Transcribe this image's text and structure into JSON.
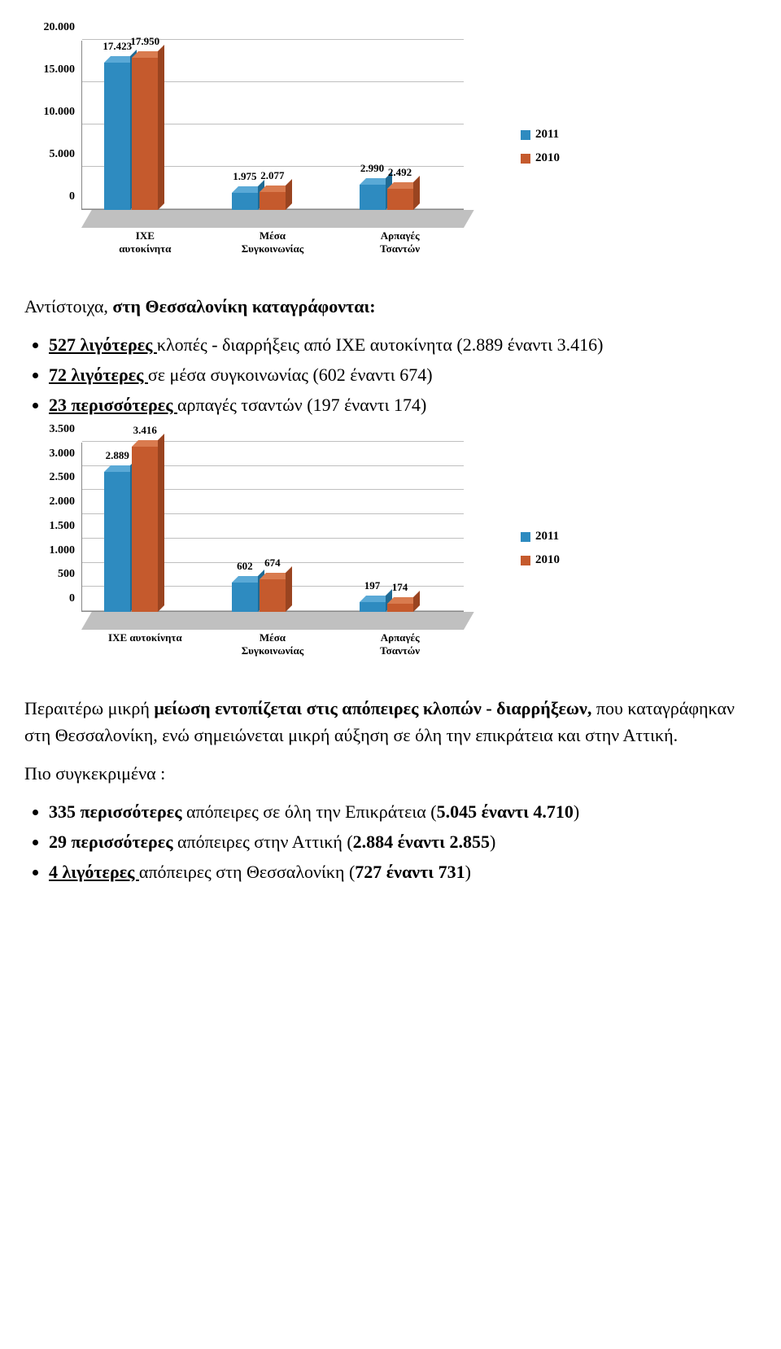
{
  "chart1": {
    "type": "bar-3d",
    "categories": [
      "ΙΧΕ\nαυτοκίνητα",
      "Μέσα\nΣυγκοινωνίας",
      "Αρπαγές\nΤσαντών"
    ],
    "series": [
      {
        "name": "2011",
        "color": "#2e8bc0",
        "color_top": "#5aa9d6",
        "color_side": "#1f6a94",
        "values": [
          17423,
          1975,
          2990
        ]
      },
      {
        "name": "2010",
        "color": "#c55a2d",
        "color_top": "#d97b4f",
        "color_side": "#9a4420",
        "values": [
          17950,
          2077,
          2492
        ]
      }
    ],
    "value_labels": [
      [
        "17.423",
        "17.950"
      ],
      [
        "1.975",
        "2.077"
      ],
      [
        "2.990",
        "2.492"
      ]
    ],
    "y_ticks": [
      0,
      5000,
      10000,
      15000,
      20000
    ],
    "y_tick_labels": [
      "0",
      "5.000",
      "10.000",
      "15.000",
      "20.000"
    ],
    "y_max": 20000,
    "grid_color": "#bfbfbf",
    "floor_color": "#c0c0c0"
  },
  "chart2": {
    "type": "bar-3d",
    "categories": [
      "ΙΧΕ αυτοκίνητα",
      "Μέσα\nΣυγκοινωνίας",
      "Αρπαγές\nΤσαντών"
    ],
    "series": [
      {
        "name": "2011",
        "color": "#2e8bc0",
        "color_top": "#5aa9d6",
        "color_side": "#1f6a94",
        "values": [
          2889,
          602,
          197
        ]
      },
      {
        "name": "2010",
        "color": "#c55a2d",
        "color_top": "#d97b4f",
        "color_side": "#9a4420",
        "values": [
          3416,
          674,
          174
        ]
      }
    ],
    "value_labels": [
      [
        "2.889",
        "3.416"
      ],
      [
        "602",
        "674"
      ],
      [
        "197",
        "174"
      ]
    ],
    "y_ticks": [
      0,
      500,
      1000,
      1500,
      2000,
      2500,
      3000,
      3500
    ],
    "y_tick_labels": [
      "0",
      "500",
      "1.000",
      "1.500",
      "2.000",
      "2.500",
      "3.000",
      "3.500"
    ],
    "y_max": 3500,
    "grid_color": "#bfbfbf",
    "floor_color": "#c0c0c0"
  },
  "text": {
    "para1_prefix": "Αντίστοιχα, ",
    "para1_bold": "στη Θεσσαλονίκη καταγράφονται:",
    "bullets1": {
      "b1_bold": "527 λιγότερες ",
      "b1_rest": "κλοπές - διαρρήξεις από ΙΧΕ αυτοκίνητα (2.889 έναντι 3.416)",
      "b2_bold": "72 λιγότερες ",
      "b2_rest": "σε μέσα συγκοινωνίας (602 έναντι 674)",
      "b3_bold": "23 περισσότερες ",
      "b3_rest": "αρπαγές τσαντών (197 έναντι 174)"
    },
    "para2_part1": "Περαιτέρω μικρή ",
    "para2_bold1": "μείωση εντοπίζεται στις απόπειρες κλοπών - διαρρήξεων, ",
    "para2_part2": "που καταγράφηκαν στη Θεσσαλονίκη, ενώ σημειώνεται μικρή αύξηση σε όλη την επικράτεια και στην Αττική.",
    "para3": "Πιο συγκεκριμένα :",
    "bullets2": {
      "b1_bold1": "335 περισσότερες ",
      "b1_mid": "απόπειρες σε όλη την Επικράτεια (",
      "b1_bold2": "5.045 έναντι 4.710",
      "b1_end": ")",
      "b2_bold1": "29 περισσότερες ",
      "b2_mid": "απόπειρες στην Αττική (",
      "b2_bold2": "2.884 έναντι 2.855",
      "b2_end": ")",
      "b3_bold1": "4 λιγότερες ",
      "b3_mid": "απόπειρες στη Θεσσαλονίκη (",
      "b3_bold2": "727 έναντι 731",
      "b3_end": ")"
    }
  },
  "legend": {
    "items": [
      "2011",
      "2010"
    ],
    "colors": [
      "#2e8bc0",
      "#c55a2d"
    ]
  }
}
